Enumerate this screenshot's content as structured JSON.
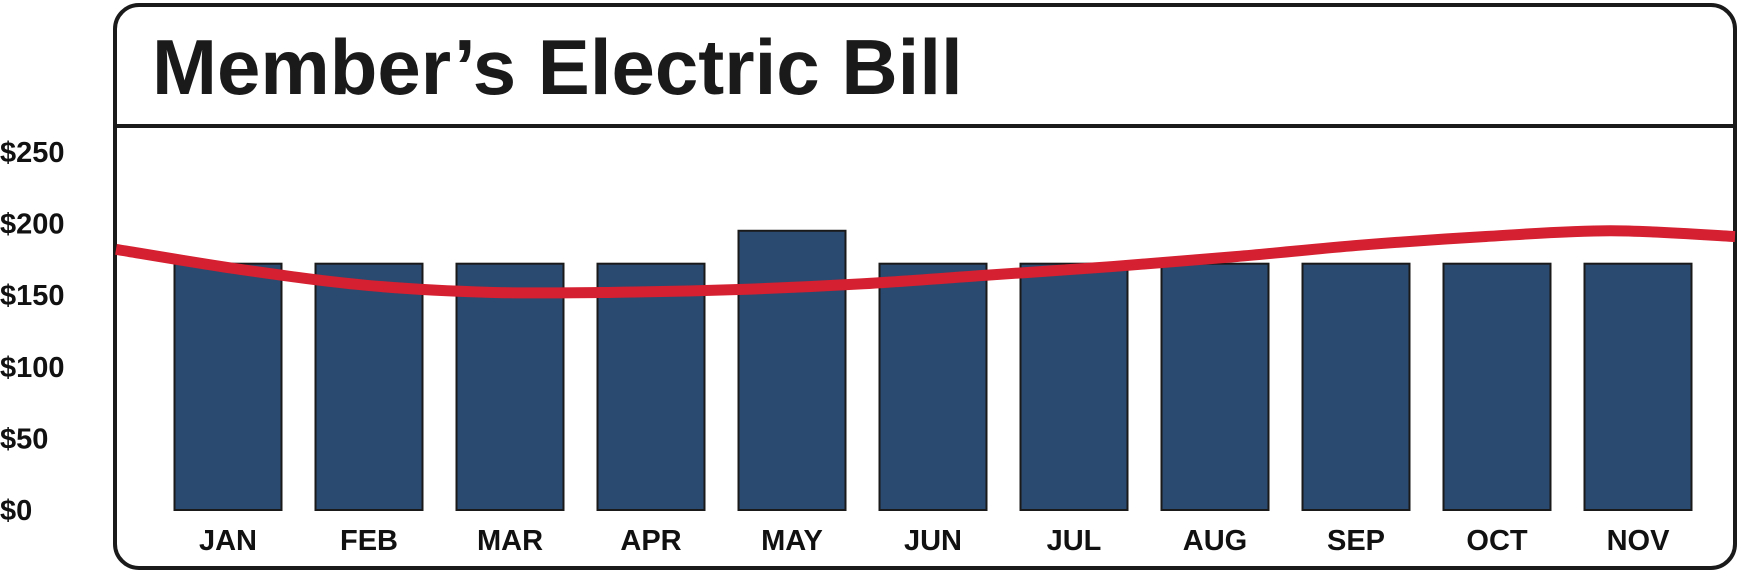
{
  "chart_data": {
    "type": "bar",
    "title": "Member’s Electric Bill",
    "categories": [
      "JAN",
      "FEB",
      "MAR",
      "APR",
      "MAY",
      "JUN",
      "JUL",
      "AUG",
      "SEP",
      "OCT",
      "NOV"
    ],
    "values": [
      172,
      172,
      172,
      172,
      195,
      172,
      172,
      172,
      172,
      172,
      172
    ],
    "y_ticks": [
      "$0",
      "$50",
      "$100",
      "$150",
      "$200",
      "$250"
    ],
    "ylim": [
      0,
      250
    ],
    "grid": false,
    "legend": "none",
    "trend_line": {
      "type": "line",
      "values": [
        182,
        168,
        157,
        152,
        152,
        154,
        158,
        164,
        170,
        177,
        185,
        191,
        195,
        191
      ]
    },
    "colors": {
      "bar": "#2b4a6f",
      "line": "#d42030",
      "frame": "#1a1a1a"
    }
  }
}
